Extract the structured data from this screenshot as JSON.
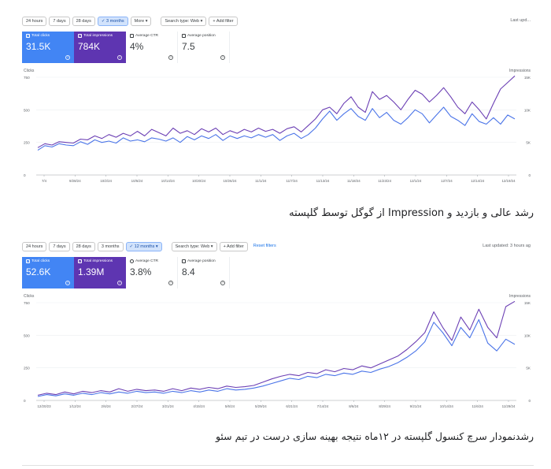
{
  "panel1": {
    "toolbar": {
      "ranges": [
        "24 hours",
        "7 days",
        "28 days",
        "3 months",
        "More"
      ],
      "selected_range": "3 months",
      "search_type": "Search type: Web",
      "add_filter": "+ Add filter",
      "updated": "Last upd..."
    },
    "cards": {
      "clicks": {
        "label": "Total clicks",
        "value": "31.5K"
      },
      "impressions": {
        "label": "Total impressions",
        "value": "784K"
      },
      "ctr": {
        "label": "Average CTR",
        "value": "4%"
      },
      "position": {
        "label": "Average position",
        "value": "7.5"
      }
    },
    "chart_data": {
      "type": "line",
      "left_axis_title": "Clicks",
      "right_axis_title": "Impressions",
      "left_ticks": [
        0,
        250,
        500,
        750
      ],
      "right_ticks": [
        0,
        "5K",
        "10K",
        "15K"
      ],
      "ylim": [
        0,
        750
      ],
      "x_labels": [
        "7/4",
        "9/28/24",
        "10/2/24",
        "10/6/24",
        "10/14/24",
        "10/20/24",
        "10/26/24",
        "11/1/24",
        "11/7/24",
        "11/13/24",
        "11/18/24",
        "11/23/24",
        "12/1/24",
        "12/7/24",
        "12/14/24",
        "12/19/24"
      ],
      "series": [
        {
          "color": "#4a74e8",
          "values": [
            190,
            225,
            215,
            240,
            230,
            225,
            255,
            235,
            270,
            250,
            260,
            245,
            285,
            260,
            270,
            255,
            285,
            275,
            260,
            285,
            250,
            295,
            270,
            300,
            280,
            310,
            265,
            300,
            280,
            300,
            285,
            310,
            290,
            310,
            265,
            300,
            320,
            280,
            310,
            360,
            430,
            490,
            420,
            470,
            510,
            450,
            420,
            510,
            440,
            480,
            420,
            390,
            440,
            500,
            470,
            400,
            460,
            520,
            450,
            420,
            380,
            470,
            410,
            390,
            440,
            390,
            460,
            430
          ]
        },
        {
          "color": "#6b3fb4",
          "values": [
            210,
            240,
            230,
            255,
            250,
            245,
            275,
            270,
            300,
            280,
            310,
            290,
            320,
            300,
            335,
            300,
            350,
            325,
            300,
            360,
            320,
            340,
            310,
            355,
            330,
            360,
            310,
            340,
            320,
            350,
            330,
            360,
            335,
            350,
            320,
            355,
            370,
            330,
            380,
            430,
            500,
            520,
            470,
            550,
            600,
            520,
            480,
            640,
            580,
            610,
            560,
            500,
            580,
            650,
            620,
            560,
            610,
            670,
            600,
            520,
            470,
            560,
            500,
            430,
            550,
            660,
            710,
            760
          ]
        }
      ]
    }
  },
  "caption1": "رشد عالی و بازدید و Impression از گوگل توسط گلپسته",
  "panel2": {
    "toolbar": {
      "ranges": [
        "24 hours",
        "7 days",
        "28 days",
        "3 months",
        "12 months"
      ],
      "selected_range": "12 months",
      "search_type": "Search type: Web",
      "add_filter": "+ Add filter",
      "reset": "Reset filters",
      "updated": "Last updated: 3 hours ag"
    },
    "cards": {
      "clicks": {
        "label": "Total clicks",
        "value": "52.6K"
      },
      "impressions": {
        "label": "Total impressions",
        "value": "1.39M"
      },
      "ctr": {
        "label": "Average CTR",
        "value": "3.8%"
      },
      "position": {
        "label": "Average position",
        "value": "8.4"
      }
    },
    "chart_data": {
      "type": "line",
      "left_axis_title": "Clicks",
      "right_axis_title": "Impressions",
      "left_ticks": [
        0,
        250,
        500,
        750
      ],
      "right_ticks": [
        0,
        "5K",
        "10K",
        "15K"
      ],
      "ylim": [
        0,
        750
      ],
      "x_labels": [
        "12/20/23",
        "1/12/24",
        "2/6/24",
        "2/27/24",
        "3/21/24",
        "4/15/24",
        "5/6/24",
        "5/29/24",
        "6/21/24",
        "7/14/24",
        "8/6/24",
        "8/29/24",
        "9/21/24",
        "10/14/24",
        "11/6/24",
        "11/29/24"
      ],
      "series": [
        {
          "color": "#4a74e8",
          "values": [
            30,
            45,
            35,
            50,
            40,
            55,
            45,
            60,
            50,
            65,
            55,
            70,
            60,
            65,
            55,
            70,
            60,
            75,
            65,
            80,
            70,
            90,
            80,
            85,
            95,
            110,
            130,
            150,
            170,
            160,
            185,
            175,
            200,
            190,
            210,
            200,
            225,
            215,
            240,
            260,
            290,
            330,
            380,
            450,
            600,
            520,
            420,
            560,
            480,
            620,
            440,
            380,
            470,
            430
          ]
        },
        {
          "color": "#6b3fb4",
          "values": [
            40,
            55,
            45,
            65,
            50,
            70,
            60,
            75,
            65,
            90,
            70,
            85,
            75,
            80,
            70,
            90,
            75,
            95,
            85,
            100,
            90,
            110,
            100,
            105,
            115,
            140,
            165,
            185,
            200,
            190,
            215,
            205,
            235,
            220,
            245,
            235,
            265,
            250,
            280,
            310,
            340,
            390,
            450,
            520,
            680,
            560,
            460,
            640,
            540,
            700,
            560,
            480,
            720,
            760
          ]
        }
      ]
    }
  },
  "caption2": "رشدنمودار سرچ کنسول گلپسته در ۱۲ماه نتیجه بهینه سازی درست در تیم سئو"
}
